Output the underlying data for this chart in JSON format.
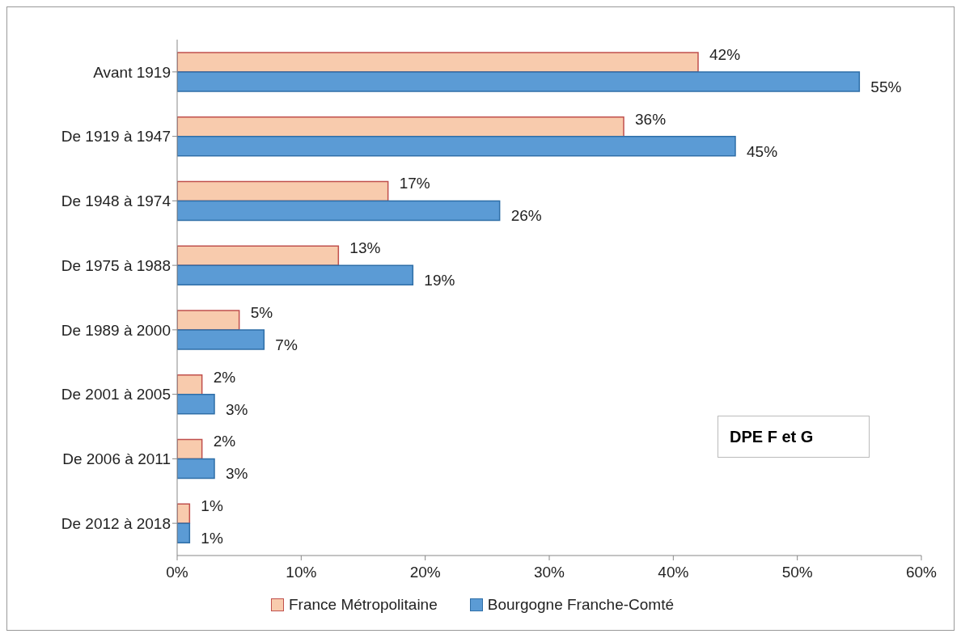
{
  "chart_data": {
    "type": "bar",
    "orientation": "horizontal",
    "categories": [
      "Avant 1919",
      "De 1919 à 1947",
      "De 1948 à 1974",
      "De 1975 à 1988",
      "De 1989 à 2000",
      "De 2001 à 2005",
      "De 2006 à 2011",
      "De 2012 à 2018"
    ],
    "series": [
      {
        "name": "France Métropolitaine",
        "color": "#f8cbad",
        "values": [
          42,
          36,
          17,
          13,
          5,
          2,
          2,
          1
        ],
        "value_labels": [
          "42%",
          "36%",
          "17%",
          "13%",
          "5%",
          "2%",
          "2%",
          "1%"
        ]
      },
      {
        "name": "Bourgogne Franche-Comté",
        "color": "#5b9bd5",
        "values": [
          55,
          45,
          26,
          19,
          7,
          3,
          3,
          1
        ],
        "value_labels": [
          "55%",
          "45%",
          "26%",
          "19%",
          "7%",
          "3%",
          "3%",
          "1%"
        ]
      }
    ],
    "xlim": [
      0,
      60
    ],
    "xticks": [
      {
        "value": 0,
        "label": "0%"
      },
      {
        "value": 10,
        "label": "10%"
      },
      {
        "value": 20,
        "label": "20%"
      },
      {
        "value": 30,
        "label": "30%"
      },
      {
        "value": 40,
        "label": "40%"
      },
      {
        "value": 50,
        "label": "50%"
      },
      {
        "value": 60,
        "label": "60%"
      }
    ],
    "legend": "bottom",
    "annotations": [
      "DPE F et G"
    ]
  }
}
